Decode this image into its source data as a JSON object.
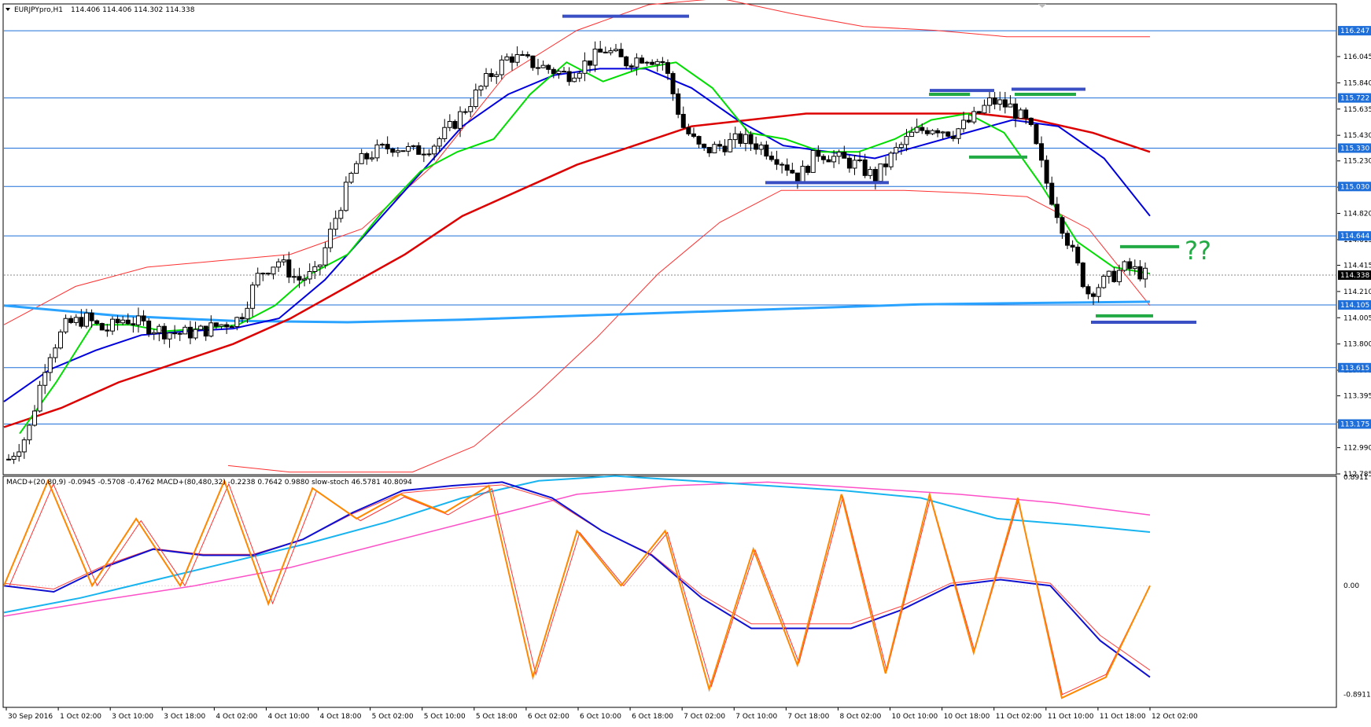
{
  "window": {
    "chart_label": "EURJPYpro,H1",
    "ohlc": "114.406 114.406 114.302 114.338",
    "indicator_label": "MACD+(20,80,9) -0.0945 -0.5708 -0.4762  MACD+(80,480,32) -0.2238 0.7642 0.9880  slow-stoch 46.5781 40.8094",
    "annotation": "??"
  },
  "colors": {
    "background": "#ffffff",
    "grid_line": "#1e6fd9",
    "price_label_bg": "#1e6fd9",
    "current_price_bg": "#000000",
    "candle_bull": "#ffffff",
    "candle_bear": "#000000",
    "ema_fast": "#00dd00",
    "ema_mid": "#0000dd",
    "ema_slow": "#dd0000",
    "bollinger": "#ff3030",
    "ma_long": "#29a3ff",
    "support_blue": "#3a4fc4",
    "support_green": "#22aa44",
    "macd_main": "#1010d0",
    "macd_signal": "#ff4040",
    "macd_long": "#18b4f0",
    "macd_long_signal": "#ff50c8",
    "stoch_k": "#ff8800",
    "stoch_d": "#ff3030"
  },
  "chart_data": {
    "type": "candlestick",
    "symbol": "EURJPYpro",
    "timeframe": "H1",
    "price_ylim": [
      112.785,
      116.45
    ],
    "price_ticks": [
      "116.045",
      "115.840",
      "115.635",
      "115.430",
      "115.230",
      "115.025",
      "114.820",
      "114.615",
      "114.415",
      "114.210",
      "114.005",
      "113.800",
      "113.595",
      "113.395",
      "113.190",
      "112.990",
      "112.785"
    ],
    "horizontal_levels": [
      {
        "price": 116.247,
        "label": "116.247"
      },
      {
        "price": 115.722,
        "label": "115.722"
      },
      {
        "price": 115.33,
        "label": "115.330"
      },
      {
        "price": 115.03,
        "label": "115.030"
      },
      {
        "price": 114.644,
        "label": "114.644"
      },
      {
        "price": 114.105,
        "label": "114.105"
      },
      {
        "price": 113.615,
        "label": "113.615"
      },
      {
        "price": 113.175,
        "label": "113.175"
      }
    ],
    "current_price": {
      "price": 114.338,
      "label": "114.338"
    },
    "x_labels": [
      "30 Sep 2016",
      "1 Oct 02:00",
      "3 Oct 10:00",
      "3 Oct 18:00",
      "4 Oct 02:00",
      "4 Oct 10:00",
      "4 Oct 18:00",
      "5 Oct 02:00",
      "5 Oct 10:00",
      "5 Oct 18:00",
      "6 Oct 02:00",
      "6 Oct 10:00",
      "6 Oct 18:00",
      "7 Oct 02:00",
      "7 Oct 10:00",
      "7 Oct 18:00",
      "8 Oct 02:00",
      "10 Oct 10:00",
      "10 Oct 18:00",
      "11 Oct 02:00",
      "11 Oct 10:00",
      "11 Oct 18:00",
      "12 Oct 02:00"
    ],
    "close_path": [
      112.9,
      113.1,
      113.7,
      113.95,
      114.0,
      113.9,
      114.0,
      113.95,
      113.9,
      113.88,
      113.9,
      113.95,
      114.0,
      114.35,
      114.45,
      114.3,
      114.35,
      114.8,
      115.2,
      115.3,
      115.35,
      115.3,
      115.35,
      115.5,
      115.7,
      115.9,
      116.05,
      116.0,
      115.95,
      115.9,
      116.0,
      116.1,
      116.0,
      116.05,
      116.0,
      115.5,
      115.3,
      115.35,
      115.4,
      115.35,
      115.25,
      115.1,
      115.3,
      115.25,
      115.2,
      115.1,
      115.3,
      115.45,
      115.5,
      115.45,
      115.55,
      115.7,
      115.65,
      115.5,
      115.0,
      114.6,
      114.2,
      114.3,
      114.4,
      114.34
    ],
    "indicators": {
      "ema_fast": [
        113.1,
        113.5,
        113.95,
        113.95,
        113.9,
        113.92,
        113.95,
        114.1,
        114.35,
        114.5,
        114.85,
        115.15,
        115.3,
        115.4,
        115.75,
        116.0,
        115.85,
        115.95,
        116.0,
        115.8,
        115.45,
        115.4,
        115.3,
        115.3,
        115.4,
        115.55,
        115.6,
        115.45,
        115.05,
        114.6,
        114.4,
        114.35
      ],
      "ema_mid": [
        113.35,
        113.6,
        113.75,
        113.87,
        113.9,
        113.92,
        114.0,
        114.3,
        114.7,
        115.1,
        115.5,
        115.75,
        115.9,
        115.95,
        115.95,
        115.8,
        115.55,
        115.35,
        115.3,
        115.25,
        115.35,
        115.45,
        115.55,
        115.5,
        115.25,
        114.8
      ],
      "ema_slow": [
        113.15,
        113.3,
        113.5,
        113.65,
        113.8,
        114.0,
        114.25,
        114.5,
        114.8,
        115.0,
        115.2,
        115.35,
        115.5,
        115.55,
        115.6,
        115.6,
        115.6,
        115.6,
        115.55,
        115.45,
        115.3
      ],
      "ma_long": [
        114.1,
        114.02,
        113.98,
        113.97,
        113.99,
        114.02,
        114.05,
        114.08,
        114.11,
        114.12,
        114.13
      ],
      "bb_upper": [
        113.95,
        114.25,
        114.4,
        114.45,
        114.5,
        114.7,
        115.2,
        115.9,
        116.25,
        116.45,
        116.5,
        116.38,
        116.28,
        116.25,
        116.2,
        116.2,
        116.2
      ],
      "bb_lower": [
        112.85,
        112.8,
        112.8,
        112.8,
        113.0,
        113.4,
        113.85,
        114.35,
        114.75,
        115.0,
        115.0,
        115.0,
        114.98,
        114.95,
        114.7,
        114.1
      ]
    },
    "sub_ylim": [
      -0.9911,
      0.8911
    ],
    "sub_ticks": [
      "0.8911",
      "0.00",
      "-0.8911"
    ],
    "sub_series": {
      "stoch": [
        0.0,
        0.86,
        0.0,
        0.55,
        0.0,
        0.86,
        -0.15,
        0.8,
        0.55,
        0.75,
        0.6,
        0.82,
        -0.75,
        0.45,
        0.0,
        0.45,
        -0.85,
        0.3,
        -0.65,
        0.75,
        -0.72,
        0.75,
        -0.55,
        0.72,
        -0.92,
        -0.75,
        0.0
      ],
      "macd_fast": [
        0.0,
        -0.05,
        0.15,
        0.3,
        0.25,
        0.25,
        0.38,
        0.6,
        0.78,
        0.82,
        0.85,
        0.72,
        0.45,
        0.25,
        -0.1,
        -0.35,
        -0.35,
        -0.35,
        -0.2,
        0.0,
        0.05,
        0.0,
        -0.45,
        -0.75
      ],
      "macd_long": [
        -0.22,
        -0.1,
        0.05,
        0.2,
        0.35,
        0.52,
        0.72,
        0.86,
        0.9,
        0.86,
        0.82,
        0.78,
        0.72,
        0.55,
        0.5,
        0.44
      ],
      "macd_long_sig": [
        -0.25,
        -0.12,
        0.0,
        0.15,
        0.35,
        0.55,
        0.75,
        0.82,
        0.85,
        0.8,
        0.75,
        0.68,
        0.58
      ]
    }
  }
}
